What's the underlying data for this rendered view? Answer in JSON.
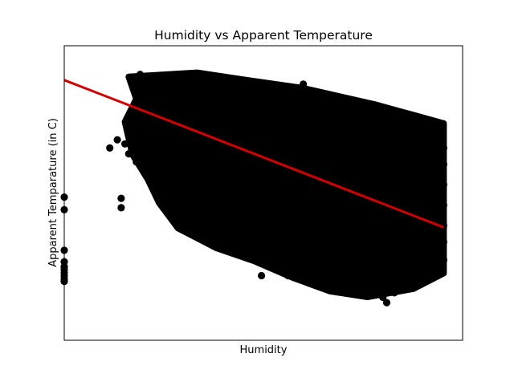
{
  "chart_data": {
    "type": "scatter",
    "title": "Humidity vs Apparent Temperature",
    "xlabel": "Humidity",
    "ylabel": "Apparent Temparature (in C)",
    "x_tick_labels": [],
    "y_tick_labels": [],
    "xlim": [
      0.0,
      1.05
    ],
    "ylim": [
      -28,
      44
    ],
    "grid": false,
    "colors": {
      "points": "#000000",
      "regression_line": "#d40000"
    },
    "series": [
      {
        "kind": "points",
        "points": [
          [
            0.0,
            -13.6
          ],
          [
            0.0,
            -13.0
          ],
          [
            0.0,
            -12.2
          ],
          [
            0.0,
            -11.5
          ],
          [
            0.0,
            -10.7
          ],
          [
            0.0,
            -10.0
          ],
          [
            0.0,
            -8.8
          ],
          [
            0.0,
            -6.0
          ],
          [
            0.0,
            3.9
          ],
          [
            0.0,
            7.0
          ],
          [
            0.15,
            4.4
          ],
          [
            0.15,
            6.7
          ],
          [
            0.12,
            19.0
          ],
          [
            0.14,
            21.0
          ],
          [
            0.16,
            20.0
          ],
          [
            0.17,
            17.6
          ],
          [
            0.19,
            15.6
          ],
          [
            0.21,
            15.3
          ],
          [
            0.26,
            14.4
          ],
          [
            0.23,
            10.2
          ],
          [
            0.25,
            11.8
          ],
          [
            0.29,
            6.8
          ],
          [
            0.3,
            8.6
          ],
          [
            0.33,
            3.6
          ],
          [
            0.35,
            6.0
          ],
          [
            0.38,
            4.4
          ],
          [
            0.43,
            2.0
          ],
          [
            0.45,
            0.4
          ],
          [
            0.49,
            -1.8
          ],
          [
            0.56,
            -5.8
          ],
          [
            0.57,
            -9.7
          ],
          [
            0.61,
            -9.0
          ],
          [
            0.66,
            -10.0
          ],
          [
            0.71,
            -11.5
          ],
          [
            0.75,
            -12.3
          ],
          [
            0.76,
            -13.9
          ],
          [
            0.79,
            -15.6
          ],
          [
            0.82,
            -15.2
          ],
          [
            0.84,
            -17.5
          ],
          [
            0.85,
            -18.8
          ],
          [
            0.87,
            -16.4
          ],
          [
            0.89,
            -15.0
          ],
          [
            0.93,
            -13.8
          ],
          [
            0.96,
            -12.0
          ],
          [
            0.98,
            -10.0
          ],
          [
            1.0,
            -8.4
          ],
          [
            0.52,
            -12.2
          ],
          [
            0.59,
            -12.2
          ],
          [
            0.63,
            34.6
          ],
          [
            0.7,
            30.0
          ],
          [
            0.75,
            29.0
          ],
          [
            0.82,
            25.0
          ],
          [
            0.88,
            23.0
          ],
          [
            0.92,
            22.0
          ],
          [
            0.97,
            20.0
          ],
          [
            1.0,
            19.0
          ],
          [
            1.0,
            15.0
          ],
          [
            1.0,
            10.0
          ],
          [
            1.0,
            5.0
          ],
          [
            1.0,
            0.0
          ],
          [
            1.0,
            -4.0
          ],
          [
            0.2,
            37.0
          ],
          [
            0.22,
            36.0
          ],
          [
            0.26,
            36.5
          ],
          [
            0.31,
            36.0
          ],
          [
            0.36,
            35.8
          ],
          [
            0.41,
            35.2
          ],
          [
            0.46,
            35.6
          ],
          [
            0.51,
            34.3
          ],
          [
            0.55,
            33.6
          ],
          [
            0.6,
            32.8
          ],
          [
            0.66,
            32.3
          ],
          [
            0.72,
            31.2
          ],
          [
            0.77,
            30.4
          ]
        ]
      },
      {
        "kind": "line",
        "x": [
          0.0,
          1.0
        ],
        "y": [
          35.6,
          -0.4
        ]
      }
    ],
    "dense_regions": [
      {
        "fill": "#000000",
        "vertices": [
          [
            0.17,
            36.4
          ],
          [
            0.35,
            37.4
          ],
          [
            0.48,
            35.6
          ],
          [
            0.63,
            33.6
          ],
          [
            0.82,
            29.6
          ],
          [
            1.0,
            25.0
          ],
          [
            1.0,
            -11.6
          ],
          [
            0.92,
            -15.4
          ],
          [
            0.8,
            -17.4
          ],
          [
            0.7,
            -16.0
          ],
          [
            0.6,
            -12.6
          ],
          [
            0.5,
            -8.6
          ],
          [
            0.4,
            -5.4
          ],
          [
            0.3,
            -0.6
          ],
          [
            0.25,
            5.6
          ],
          [
            0.22,
            11.4
          ],
          [
            0.18,
            17.4
          ],
          [
            0.16,
            25.4
          ],
          [
            0.19,
            31.0
          ]
        ]
      }
    ]
  }
}
